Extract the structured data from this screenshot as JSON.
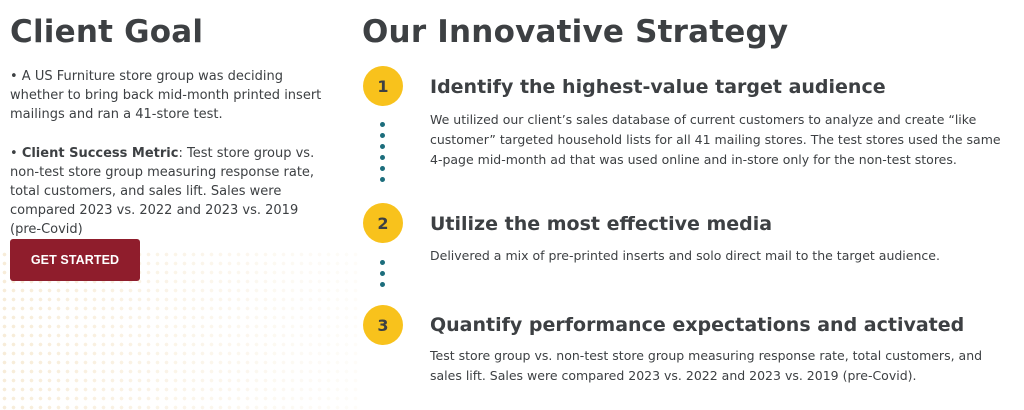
{
  "left": {
    "heading": "Client Goal",
    "paragraph1": "• A US Furniture store group was deciding whether to bring back mid-month printed insert mailings and ran a 41-store test.",
    "metric_bullet": "• ",
    "metric_label": "Client Success Metric",
    "metric_text": ": Test store group vs. non-test store group measuring response rate, total customers, and sales lift. Sales were compared 2023 vs. 2022 and 2023 vs. 2019 (pre-Covid)",
    "cta_label": "GET STARTED"
  },
  "right": {
    "heading": "Our Innovative Strategy",
    "steps": [
      {
        "number": "1",
        "title": "Identify the highest-value target audience",
        "description": "We utilized our client’s sales database of current customers to analyze and create “like customer” targeted household lists for all 41 mailing stores. The test stores used the same 4-page mid-month ad that was used online and in-store only for the non-test stores."
      },
      {
        "number": "2",
        "title": "Utilize the most effective media",
        "description": "Delivered a mix of pre-printed inserts and solo direct mail to the target audience."
      },
      {
        "number": "3",
        "title": "Quantify performance expectations and activated",
        "description": "Test store group vs. non-test store group measuring response rate, total customers, and sales lift. Sales were compared 2023 vs. 2022 and 2023 vs. 2019 (pre-Covid)."
      }
    ]
  },
  "colors": {
    "accent_yellow": "#f8c21c",
    "button_red": "#8f1d2c",
    "connector_teal": "#1c6d7c",
    "text_dark": "#3d4043"
  }
}
